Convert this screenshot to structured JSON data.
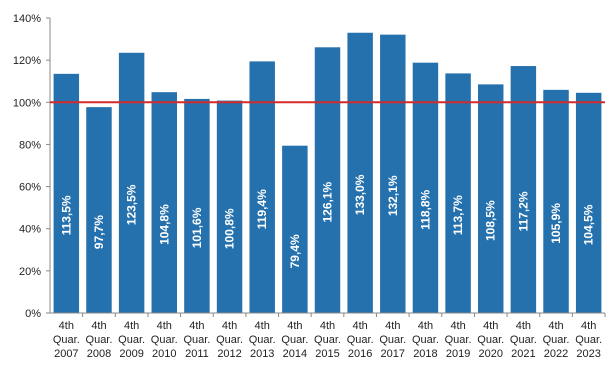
{
  "chart_data": {
    "type": "bar",
    "categories": [
      [
        "4th",
        "Quar.",
        "2007"
      ],
      [
        "4th",
        "Quar.",
        "2008"
      ],
      [
        "4th",
        "Quar.",
        "2009"
      ],
      [
        "4th",
        "Quar.",
        "2010"
      ],
      [
        "4th",
        "Quar.",
        "2011"
      ],
      [
        "4th",
        "Quar.",
        "2012"
      ],
      [
        "4th",
        "Quar.",
        "2013"
      ],
      [
        "4th",
        "Quar.",
        "2014"
      ],
      [
        "4th",
        "Quar.",
        "2015"
      ],
      [
        "4th",
        "Quar.",
        "2016"
      ],
      [
        "4th",
        "Quar.",
        "2017"
      ],
      [
        "4th",
        "Quar.",
        "2018"
      ],
      [
        "4th",
        "Quar.",
        "2019"
      ],
      [
        "4th",
        "Quar.",
        "2020"
      ],
      [
        "4th",
        "Quar.",
        "2021"
      ],
      [
        "4th",
        "Quar.",
        "2022"
      ],
      [
        "4th",
        "Quar.",
        "2023"
      ]
    ],
    "values": [
      113.5,
      97.7,
      123.5,
      104.8,
      101.6,
      100.8,
      119.4,
      79.4,
      126.1,
      133.0,
      132.1,
      118.8,
      113.7,
      108.5,
      117.2,
      105.9,
      104.5
    ],
    "data_labels": [
      "113,5%",
      "97,7%",
      "123,5%",
      "104,8%",
      "101,6%",
      "100,8%",
      "119,4%",
      "79,4%",
      "126,1%",
      "133,0%",
      "132,1%",
      "118,8%",
      "113,7%",
      "108,5%",
      "117,2%",
      "105,9%",
      "104,5%"
    ],
    "y_ticks": [
      "0%",
      "20%",
      "40%",
      "60%",
      "80%",
      "100%",
      "120%",
      "140%"
    ],
    "ylim": [
      0,
      140
    ],
    "reference_line": 100,
    "grid": false,
    "colors": {
      "bar": "#2471ae",
      "reference_line": "#d42a2a",
      "axis": "#888888"
    }
  }
}
